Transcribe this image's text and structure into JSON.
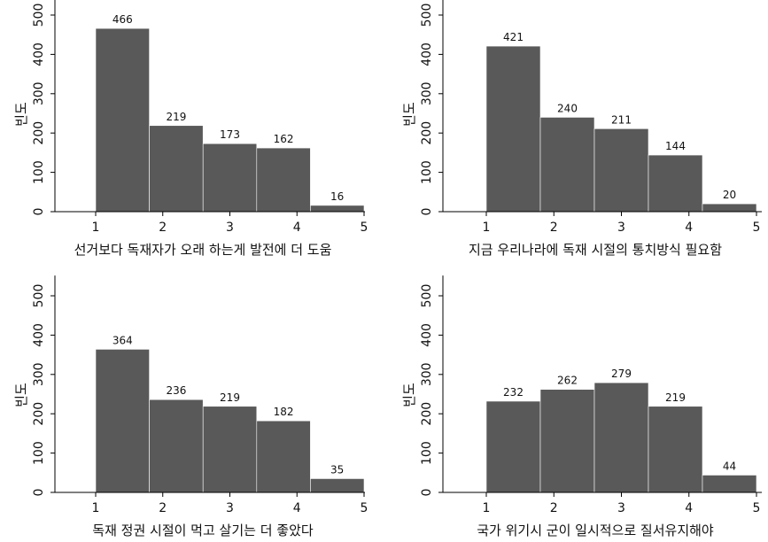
{
  "chart_data": [
    {
      "type": "bar",
      "xlabel": "선거보다 독재자가 오래 하는게 발전에 더 도움",
      "ylabel": "빈도",
      "categories": [
        "1",
        "2",
        "3",
        "4",
        "5"
      ],
      "values": [
        466,
        219,
        173,
        162,
        16
      ],
      "xlim": [
        0.4,
        5.2
      ],
      "ylim": [
        0,
        520
      ],
      "xticks": [
        1,
        2,
        3,
        4,
        5
      ],
      "yticks": [
        0,
        100,
        200,
        300,
        400,
        500
      ],
      "grid": false,
      "legend": "none",
      "bar_color": "#595959"
    },
    {
      "type": "bar",
      "xlabel": "지금 우리나라에 독재 시절의 통치방식 필요함",
      "ylabel": "빈도",
      "categories": [
        "1",
        "2",
        "3",
        "4",
        "5"
      ],
      "values": [
        421,
        240,
        211,
        144,
        20
      ],
      "xlim": [
        0.4,
        5.2
      ],
      "ylim": [
        0,
        520
      ],
      "xticks": [
        1,
        2,
        3,
        4,
        5
      ],
      "yticks": [
        0,
        100,
        200,
        300,
        400,
        500
      ],
      "grid": false,
      "legend": "none",
      "bar_color": "#595959"
    },
    {
      "type": "bar",
      "xlabel": "독재 정권 시절이 먹고 살기는 더 좋았다",
      "ylabel": "빈도",
      "categories": [
        "1",
        "2",
        "3",
        "4",
        "5"
      ],
      "values": [
        364,
        236,
        219,
        182,
        35
      ],
      "xlim": [
        0.4,
        5.2
      ],
      "ylim": [
        0,
        520
      ],
      "xticks": [
        1,
        2,
        3,
        4,
        5
      ],
      "yticks": [
        0,
        100,
        200,
        300,
        400,
        500
      ],
      "grid": false,
      "legend": "none",
      "bar_color": "#595959"
    },
    {
      "type": "bar",
      "xlabel": "국가 위기시 군이 일시적으로 질서유지해야",
      "ylabel": "빈도",
      "categories": [
        "1",
        "2",
        "3",
        "4",
        "5"
      ],
      "values": [
        232,
        262,
        279,
        219,
        44
      ],
      "xlim": [
        0.4,
        5.2
      ],
      "ylim": [
        0,
        520
      ],
      "xticks": [
        1,
        2,
        3,
        4,
        5
      ],
      "yticks": [
        0,
        100,
        200,
        300,
        400,
        500
      ],
      "grid": false,
      "legend": "none",
      "bar_color": "#595959"
    }
  ]
}
